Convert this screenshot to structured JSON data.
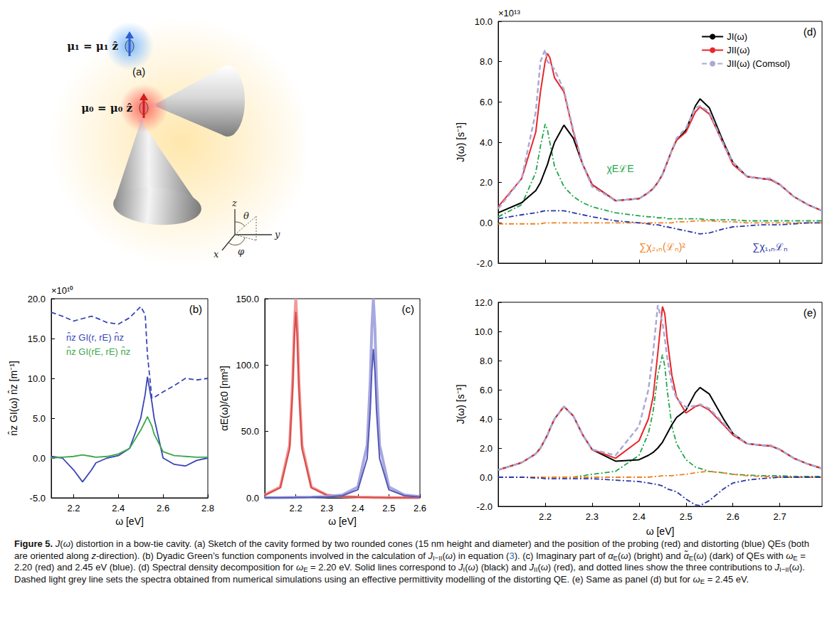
{
  "caption": [
    {
      "b": "Figure 5."
    },
    " ",
    {
      "i": "J"
    },
    "(",
    {
      "i": "ω"
    },
    ") distortion in a bow-tie cavity. (a) Sketch of the cavity formed by two rounded cones (15 nm height and diameter) and the position of the probing (red) and distorting (blue) QEs (both are oriented along ",
    {
      "i": "z"
    },
    "-direction). (b) Dyadic Green’s function components involved in the calculation of ",
    {
      "i": "J"
    },
    {
      "sub": "I−II"
    },
    "(",
    {
      "i": "ω"
    },
    ") in equation (",
    {
      "link": "3"
    },
    "). (c) Imaginary part of ",
    {
      "i": "α"
    },
    {
      "sub": "E"
    },
    "(",
    {
      "i": "ω"
    },
    ") (bright) and ",
    {
      "i": "α̃"
    },
    {
      "sub": "E"
    },
    "(",
    {
      "i": "ω"
    },
    ") (dark) of QEs with ",
    {
      "i": "ω"
    },
    {
      "sub": "E"
    },
    " = 2.20 (red) and 2.45 eV (blue). (d) Spectral density decomposition for ",
    {
      "i": "ω"
    },
    {
      "sub": "E"
    },
    " = 2.20 eV. Solid lines correspond to ",
    {
      "i": "J"
    },
    {
      "sub": "I"
    },
    "(",
    {
      "i": "ω"
    },
    ") (black) and ",
    {
      "i": "J"
    },
    {
      "sub": "II"
    },
    "(",
    {
      "i": "ω"
    },
    ") (red), and dotted lines show the three contributions to ",
    {
      "i": "J"
    },
    {
      "sub": "I−II"
    },
    "(",
    {
      "i": "ω"
    },
    "). Dashed light grey line sets the spectra obtained from numerical simulations using an effective permittivity modelling of the distorting QE. (e) Same as panel (d) but for ",
    {
      "i": "ω"
    },
    {
      "sub": "E"
    },
    " = 2.45 eV."
  ],
  "panel_a": {
    "letter": "(a)",
    "mu1": "μ₁ = μ₁ ẑ",
    "mu0": "μ₀ = μ₀ ẑ",
    "axes": {
      "x": "x",
      "y": "y",
      "z": "z",
      "theta": "θ",
      "phi": "φ"
    }
  },
  "chart_data": [
    {
      "type": "line",
      "panel": "(b)",
      "scale_label": "×10¹⁰",
      "x_label": "ω [eV]",
      "y_label": "n̂z GI(ω) n̂z [m⁻¹]",
      "xlim": [
        2.1,
        2.8
      ],
      "xticks": [
        2.2,
        2.4,
        2.6,
        2.8
      ],
      "ylim": [
        -5,
        20
      ],
      "yticks": [
        {
          "value": -5,
          "label": "-5.0"
        },
        {
          "value": 0,
          "label": "0.0"
        },
        {
          "value": 5,
          "label": "5.0"
        },
        {
          "value": 10,
          "label": "10.0"
        },
        {
          "value": 15,
          "label": "15.0"
        },
        {
          "value": 20,
          "label": "20.0"
        }
      ],
      "grid": false,
      "legend": "top-left",
      "x": [
        2.1,
        2.15,
        2.2,
        2.24,
        2.28,
        2.3,
        2.35,
        2.4,
        2.45,
        2.5,
        2.52,
        2.53,
        2.55,
        2.56,
        2.6,
        2.65,
        2.7,
        2.75,
        2.8
      ],
      "series": [
        {
          "color": "#3845b5",
          "line_style": "dashed",
          "values": [
            18.3,
            17.8,
            17.2,
            17.5,
            17.8,
            17.6,
            17.0,
            16.8,
            17.6,
            19.0,
            18.0,
            13.0,
            7.5,
            7.6,
            8.3,
            9.1,
            10.0,
            9.8,
            10.0
          ]
        },
        {
          "name": "n̂z GI(r, rE) n̂z",
          "color": "#3845b5",
          "line_style": "solid",
          "values": [
            0.2,
            0.0,
            -1.5,
            -3.0,
            -1.5,
            -0.6,
            0.0,
            0.3,
            1.2,
            5.0,
            8.0,
            10.2,
            7.0,
            5.0,
            0.0,
            -0.8,
            -1.0,
            -0.3,
            0.0
          ]
        },
        {
          "name": "n̂z GI(rE, rE) n̂z",
          "color": "#3aa84a",
          "line_style": "solid",
          "values": [
            0.0,
            0.1,
            0.2,
            0.4,
            0.2,
            0.1,
            0.2,
            0.5,
            1.2,
            3.5,
            4.6,
            5.2,
            4.0,
            3.0,
            0.8,
            0.3,
            0.2,
            0.1,
            0.1
          ]
        }
      ]
    },
    {
      "type": "line",
      "panel": "(c)",
      "x_label": "ω [eV]",
      "y_label": "αE(ω)/ϵ0 [nm³]",
      "xlim": [
        2.1,
        2.6
      ],
      "xticks": [
        2.2,
        2.3,
        2.4,
        2.5,
        2.6
      ],
      "ylim": [
        0,
        150
      ],
      "yticks": [
        {
          "value": 0,
          "label": "0.0"
        },
        {
          "value": 50,
          "label": "50.0"
        },
        {
          "value": 100,
          "label": "100.0"
        },
        {
          "value": 150,
          "label": "150.0"
        }
      ],
      "grid": false,
      "x": [
        2.1,
        2.15,
        2.18,
        2.19,
        2.195,
        2.2,
        2.205,
        2.21,
        2.22,
        2.25,
        2.3,
        2.35,
        2.4,
        2.43,
        2.44,
        2.445,
        2.45,
        2.455,
        2.46,
        2.47,
        2.5,
        2.55,
        2.6
      ],
      "series": [
        {
          "color": "#f19a98",
          "line_style": "solid",
          "values": [
            2.1,
            8.2,
            39.7,
            88.5,
            127.8,
            150,
            127.8,
            88.5,
            39.7,
            8.2,
            2.1,
            1.0,
            0.5,
            0.4,
            0.4,
            0.4,
            0.3,
            0.3,
            0.3,
            0.3,
            0.2,
            0.2,
            0.1
          ]
        },
        {
          "color": "#d94a4a",
          "line_style": "solid",
          "values": [
            2.0,
            7.6,
            37.0,
            82.6,
            119.3,
            140,
            119.3,
            82.6,
            37.0,
            7.6,
            2.0,
            0.9,
            0.5,
            0.4,
            0.3,
            0.3,
            0.3,
            0.3,
            0.3,
            0.3,
            0.2,
            0.2,
            0.1
          ]
        },
        {
          "color": "#a7a8de",
          "line_style": "solid",
          "values": [
            0.2,
            0.2,
            0.3,
            0.3,
            0.3,
            0.3,
            0.4,
            0.4,
            0.4,
            0.5,
            1.0,
            2.1,
            8.2,
            39.7,
            88.5,
            127.8,
            150,
            127.8,
            88.5,
            39.7,
            8.2,
            2.1,
            1.0
          ]
        },
        {
          "color": "#5558b8",
          "line_style": "solid",
          "values": [
            0.1,
            0.2,
            0.2,
            0.2,
            0.2,
            0.3,
            0.3,
            0.3,
            0.3,
            0.4,
            0.7,
            1.6,
            6.1,
            29.6,
            66.1,
            95.4,
            112,
            95.4,
            66.1,
            29.6,
            6.1,
            1.6,
            0.7
          ]
        }
      ]
    },
    {
      "type": "line",
      "panel": "(d)",
      "scale_label": "×10¹³",
      "y_label": "J(ω) [s⁻¹]",
      "tick_labels": "y",
      "xlim": [
        2.1,
        2.79
      ],
      "xticks": [
        2.2,
        2.3,
        2.4,
        2.5,
        2.6,
        2.7
      ],
      "ylim": [
        -2,
        10
      ],
      "yticks": [
        {
          "value": -2,
          "label": "-2.0"
        },
        {
          "value": 0,
          "label": "0.0"
        },
        {
          "value": 2,
          "label": "2.0"
        },
        {
          "value": 4,
          "label": "4.0"
        },
        {
          "value": 6,
          "label": "6.0"
        },
        {
          "value": 8,
          "label": "8.0"
        },
        {
          "value": 10,
          "label": "10.0"
        }
      ],
      "grid": false,
      "legend": "top-right",
      "x": [
        2.1,
        2.15,
        2.18,
        2.19,
        2.2,
        2.205,
        2.21,
        2.22,
        2.24,
        2.26,
        2.28,
        2.3,
        2.35,
        2.4,
        2.42,
        2.43,
        2.44,
        2.45,
        2.455,
        2.46,
        2.47,
        2.48,
        2.5,
        2.52,
        2.53,
        2.55,
        2.58,
        2.6,
        2.63,
        2.66,
        2.68,
        2.7,
        2.73,
        2.76,
        2.79
      ],
      "series": [
        {
          "label": "χEℒE",
          "color": "#1fa64b",
          "line_style": "dashdot",
          "values": [
            0.3,
            0.9,
            2.5,
            3.8,
            4.9,
            4.6,
            4.0,
            2.8,
            1.8,
            1.3,
            1.0,
            0.8,
            0.5,
            0.35,
            0.3,
            0.3,
            0.25,
            0.25,
            0.25,
            0.2,
            0.2,
            0.2,
            0.2,
            0.2,
            0.2,
            0.15,
            0.15,
            0.15,
            0.1,
            0.1,
            0.1,
            0.1,
            0.1,
            0.1,
            0.1
          ]
        },
        {
          "label": "∑χ₂,ₙ(ℒₙ)²",
          "color": "#f08020",
          "line_style": "dashdot",
          "values": [
            -0.05,
            -0.05,
            -0.05,
            -0.05,
            0,
            0,
            0,
            0,
            0,
            0,
            0,
            0,
            0,
            0,
            0,
            0,
            0,
            0,
            0,
            0,
            0,
            0.05,
            0.05,
            0.1,
            0.1,
            0.1,
            0.05,
            0.05,
            0,
            0,
            0,
            0,
            0,
            0,
            0
          ]
        },
        {
          "label": "∑χ₁,ₙℒₙ",
          "color": "#2a36a8",
          "line_style": "dashdot",
          "values": [
            0.2,
            0.4,
            0.5,
            0.55,
            0.6,
            0.6,
            0.6,
            0.6,
            0.6,
            0.5,
            0.4,
            0.3,
            0.1,
            0.0,
            -0.05,
            -0.1,
            -0.1,
            -0.15,
            -0.2,
            -0.2,
            -0.25,
            -0.3,
            -0.4,
            -0.5,
            -0.55,
            -0.5,
            -0.3,
            -0.2,
            -0.15,
            -0.1,
            -0.1,
            -0.1,
            -0.05,
            0.0,
            0.0
          ]
        },
        {
          "name": "JI(ω)",
          "color": "#000000",
          "line_style": "solid",
          "values": [
            0.5,
            1.0,
            1.6,
            2.0,
            2.6,
            2.9,
            3.3,
            4.0,
            4.85,
            4.2,
            2.9,
            1.9,
            1.1,
            1.2,
            1.5,
            1.7,
            2.0,
            2.4,
            2.7,
            3.0,
            3.6,
            4.1,
            4.6,
            5.8,
            6.15,
            5.7,
            4.0,
            3.0,
            2.3,
            2.2,
            2.15,
            1.9,
            1.3,
            0.9,
            0.6
          ]
        },
        {
          "name": "JII(ω)",
          "color": "#e8262b",
          "line_style": "solid",
          "values": [
            0.8,
            2.2,
            4.5,
            6.5,
            8.0,
            8.4,
            8.2,
            7.2,
            6.5,
            4.5,
            2.9,
            1.9,
            1.1,
            1.2,
            1.5,
            1.7,
            2.0,
            2.4,
            2.7,
            3.0,
            3.6,
            4.1,
            4.5,
            5.5,
            5.75,
            5.4,
            3.9,
            2.9,
            2.3,
            2.2,
            2.15,
            1.9,
            1.3,
            0.9,
            0.6
          ]
        },
        {
          "name": "JII(ω) (Comsol)",
          "color": "#a9a9d6",
          "line_style": "dashed",
          "values": [
            0.7,
            2.2,
            5.5,
            8.0,
            8.6,
            8.0,
            7.9,
            7.6,
            6.6,
            4.6,
            2.9,
            1.8,
            1.1,
            1.2,
            1.5,
            1.7,
            2.0,
            2.4,
            2.7,
            3.0,
            3.6,
            4.2,
            4.7,
            5.7,
            5.8,
            5.5,
            3.9,
            3.0,
            2.3,
            2.2,
            2.2,
            1.9,
            1.3,
            0.9,
            0.6
          ]
        }
      ]
    },
    {
      "type": "line",
      "panel": "(e)",
      "x_label": "ω [eV]",
      "y_label": "J(ω) [s⁻¹]",
      "xlim": [
        2.1,
        2.79
      ],
      "xticks": [
        2.2,
        2.3,
        2.4,
        2.5,
        2.6,
        2.7
      ],
      "ylim": [
        -2,
        12
      ],
      "yticks": [
        {
          "value": -2,
          "label": "-2.0"
        },
        {
          "value": 0,
          "label": "0.0"
        },
        {
          "value": 2,
          "label": "2.0"
        },
        {
          "value": 4,
          "label": "4.0"
        },
        {
          "value": 6,
          "label": "6.0"
        },
        {
          "value": 8,
          "label": "8.0"
        },
        {
          "value": 10,
          "label": "10.0"
        },
        {
          "value": 12,
          "label": "12.0"
        }
      ],
      "grid": false,
      "x": [
        2.1,
        2.15,
        2.18,
        2.19,
        2.2,
        2.205,
        2.21,
        2.22,
        2.24,
        2.26,
        2.28,
        2.3,
        2.35,
        2.4,
        2.42,
        2.43,
        2.44,
        2.45,
        2.455,
        2.46,
        2.47,
        2.48,
        2.5,
        2.52,
        2.53,
        2.55,
        2.58,
        2.6,
        2.63,
        2.66,
        2.68,
        2.7,
        2.73,
        2.76,
        2.79
      ],
      "series": [
        {
          "color": "#1fa64b",
          "line_style": "dashdot",
          "values": [
            0,
            0,
            0,
            0,
            0,
            0,
            0,
            0,
            0,
            0,
            0.1,
            0.2,
            0.4,
            1.5,
            3.0,
            4.5,
            7.0,
            8.4,
            7.6,
            6.0,
            3.5,
            2.3,
            1.2,
            0.7,
            0.6,
            0.4,
            0.3,
            0.2,
            0.15,
            0.1,
            0.1,
            0.1,
            0.05,
            0.05,
            0.05
          ]
        },
        {
          "color": "#f08020",
          "line_style": "dashdot",
          "values": [
            0,
            0,
            0,
            0,
            0,
            0,
            0,
            0,
            0,
            0,
            0,
            0,
            0,
            0,
            0,
            0.05,
            0.05,
            0.1,
            0.1,
            0.1,
            0.1,
            0.15,
            0.2,
            0.3,
            0.35,
            0.4,
            0.3,
            0.2,
            0.1,
            0.05,
            0.05,
            0,
            0,
            0,
            0
          ]
        },
        {
          "color": "#2a36a8",
          "line_style": "dashdot",
          "values": [
            0,
            0,
            -0.05,
            -0.05,
            -0.1,
            -0.1,
            -0.1,
            -0.1,
            -0.1,
            -0.1,
            -0.1,
            -0.1,
            -0.2,
            -0.3,
            -0.4,
            -0.45,
            -0.5,
            -0.6,
            -0.7,
            -0.8,
            -0.9,
            -1.0,
            -1.5,
            -1.9,
            -1.95,
            -1.6,
            -0.8,
            -0.4,
            -0.2,
            -0.1,
            -0.05,
            0,
            0,
            0,
            0
          ]
        },
        {
          "color": "#000000",
          "line_style": "solid",
          "values": [
            0.5,
            1.0,
            1.6,
            2.0,
            2.6,
            2.9,
            3.3,
            4.0,
            4.85,
            4.2,
            2.9,
            1.9,
            1.1,
            1.2,
            1.5,
            1.7,
            2.0,
            2.4,
            2.7,
            3.0,
            3.6,
            4.1,
            4.6,
            5.8,
            6.15,
            5.7,
            4.0,
            3.0,
            2.3,
            2.2,
            2.15,
            1.9,
            1.3,
            0.9,
            0.6
          ]
        },
        {
          "color": "#e8262b",
          "line_style": "solid",
          "values": [
            0.5,
            1.0,
            1.6,
            2.0,
            2.6,
            2.9,
            3.3,
            4.0,
            4.85,
            4.2,
            2.9,
            1.9,
            1.3,
            2.5,
            4.0,
            5.5,
            8.5,
            11.7,
            11.2,
            9.5,
            7.0,
            5.5,
            4.4,
            4.85,
            4.95,
            4.6,
            3.6,
            2.9,
            2.3,
            2.2,
            2.15,
            1.9,
            1.3,
            0.9,
            0.6
          ]
        },
        {
          "color": "#a9a9d6",
          "line_style": "dashed",
          "values": [
            0.5,
            1.0,
            1.6,
            2.0,
            2.6,
            2.9,
            3.3,
            4.0,
            4.85,
            4.2,
            2.9,
            1.9,
            1.5,
            3.5,
            6.0,
            8.5,
            11.8,
            10.6,
            9.5,
            8.2,
            6.3,
            5.4,
            4.8,
            4.9,
            5.0,
            4.7,
            3.7,
            3.0,
            2.3,
            2.2,
            2.2,
            1.9,
            1.3,
            0.9,
            0.6
          ]
        }
      ]
    }
  ]
}
